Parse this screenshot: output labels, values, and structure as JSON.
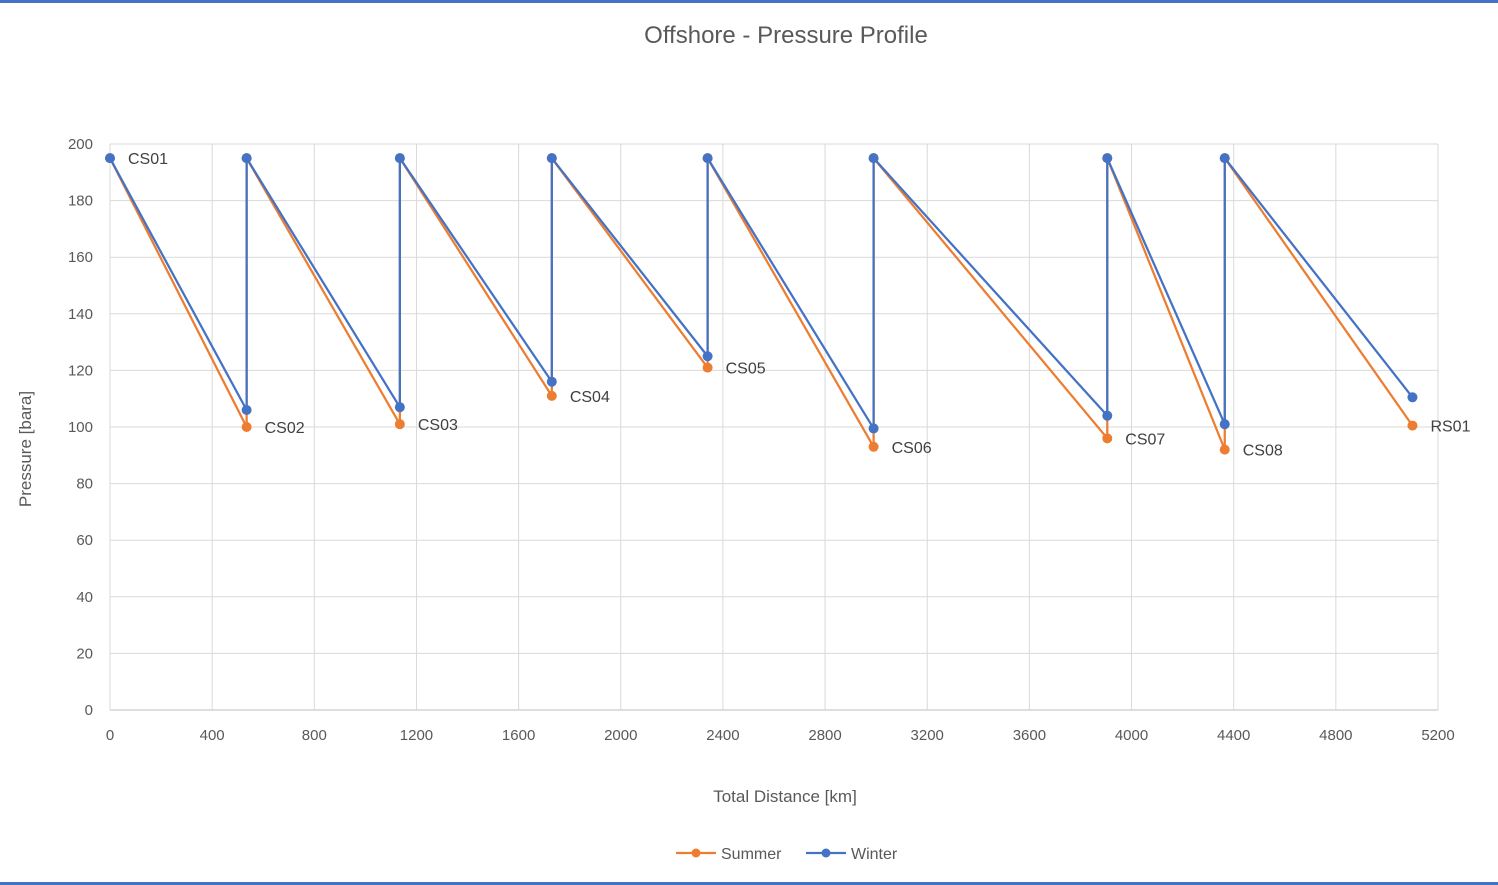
{
  "chart_data": {
    "type": "line",
    "title": "Offshore - Pressure Profile",
    "xlabel": "Total Distance [km]",
    "ylabel": "Pressure [bara]",
    "xlim": [
      0,
      5200
    ],
    "ylim": [
      0,
      200
    ],
    "xticks": [
      0,
      400,
      800,
      1200,
      1600,
      2000,
      2400,
      2800,
      3200,
      3600,
      4000,
      4400,
      4800,
      5200
    ],
    "yticks": [
      0,
      20,
      40,
      60,
      80,
      100,
      120,
      140,
      160,
      180,
      200
    ],
    "grid": true,
    "legend_position": "bottom",
    "series": [
      {
        "name": "Summer",
        "color": "#ED7D31",
        "x": [
          0,
          535,
          535,
          1135,
          1135,
          1730,
          1730,
          2340,
          2340,
          2990,
          2990,
          3905,
          3905,
          4365,
          4365,
          5100
        ],
        "y": [
          195,
          100,
          195,
          101,
          195,
          111,
          195,
          121,
          195,
          93,
          195,
          96,
          195,
          92,
          195,
          100.5
        ]
      },
      {
        "name": "Winter",
        "color": "#4472C4",
        "x": [
          0,
          535,
          535,
          1135,
          1135,
          1730,
          1730,
          2340,
          2340,
          2990,
          2990,
          3905,
          3905,
          4365,
          4365,
          5100
        ],
        "y": [
          195,
          106,
          195,
          107,
          195,
          116,
          195,
          125,
          195,
          99.5,
          195,
          104,
          195,
          101,
          195,
          110.5
        ]
      }
    ],
    "annotations": [
      {
        "text": "CS01",
        "x": 0,
        "y": 195
      },
      {
        "text": "CS02",
        "x": 535,
        "y": 100
      },
      {
        "text": "CS03",
        "x": 1135,
        "y": 101
      },
      {
        "text": "CS04",
        "x": 1730,
        "y": 111
      },
      {
        "text": "CS05",
        "x": 2340,
        "y": 121
      },
      {
        "text": "CS06",
        "x": 2990,
        "y": 93
      },
      {
        "text": "CS07",
        "x": 3905,
        "y": 96
      },
      {
        "text": "CS08",
        "x": 4365,
        "y": 92
      },
      {
        "text": "RS01",
        "x": 5100,
        "y": 100.5
      }
    ]
  }
}
